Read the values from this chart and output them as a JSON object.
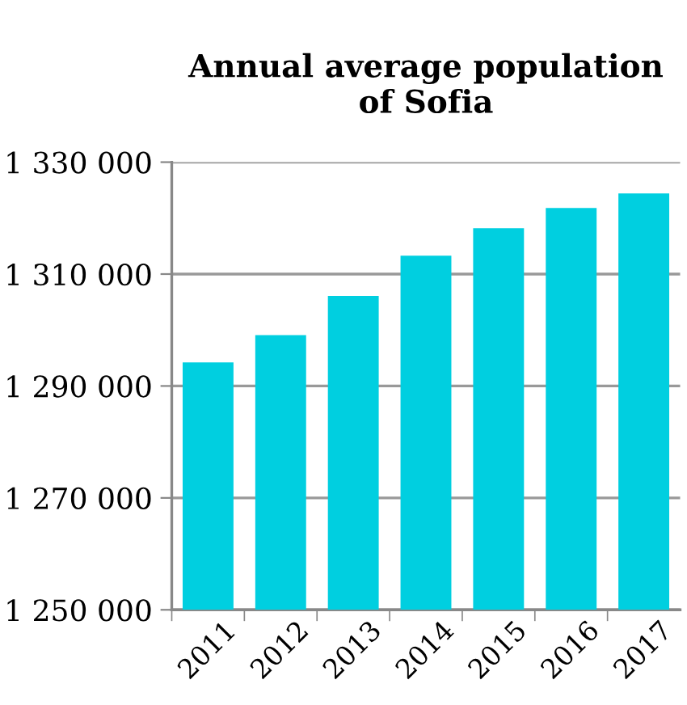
{
  "chart_data": {
    "type": "bar",
    "title": "Annual average population\nof Sofia",
    "categories": [
      "2011",
      "2012",
      "2013",
      "2014",
      "2015",
      "2016",
      "2017"
    ],
    "values": [
      1294200,
      1299100,
      1306100,
      1313300,
      1318200,
      1321800,
      1324400
    ],
    "color": "#00cfe0",
    "ylim": [
      1250000,
      1330000
    ],
    "yticks": [
      {
        "value": 1250000,
        "label": "1 250 000"
      },
      {
        "value": 1270000,
        "label": "1 270 000"
      },
      {
        "value": 1290000,
        "label": "1 290 000"
      },
      {
        "value": 1310000,
        "label": "1 310 000"
      },
      {
        "value": 1330000,
        "label": "1 330 000"
      }
    ],
    "grid": "y",
    "legend": false
  }
}
